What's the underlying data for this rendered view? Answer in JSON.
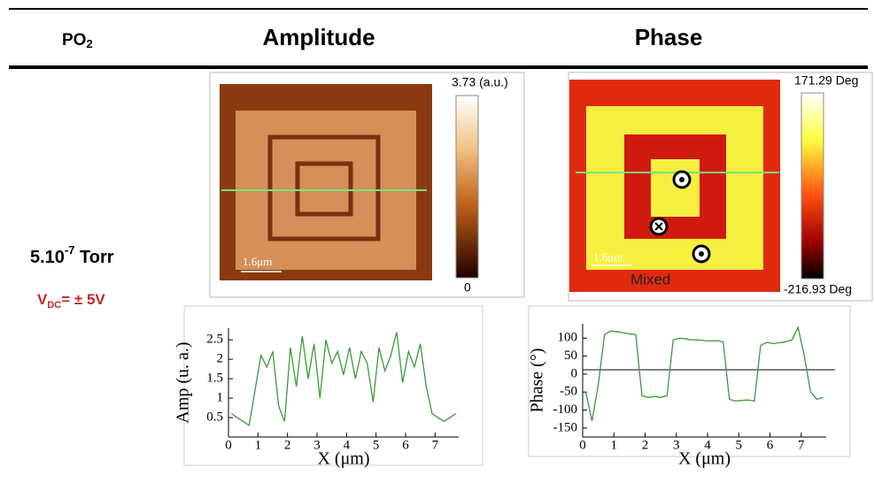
{
  "header": {
    "po": "PO",
    "po_sub": "2",
    "amplitude": "Amplitude",
    "phase": "Phase"
  },
  "condition": {
    "pressure": "5.10",
    "pressure_exp": "-7",
    "pressure_unit": " Torr",
    "voltage": "V",
    "voltage_sub": "DC",
    "voltage_value": "= ± 5V"
  },
  "amplitude_map": {
    "colorbar_max": "3.73 (a.u.)",
    "colorbar_min": "0",
    "scale_bar": "1.6μm"
  },
  "phase_map": {
    "colorbar_max": "171.29 Deg",
    "colorbar_min": "-216.93 Deg",
    "scale_bar": "1.6μm",
    "annotation": "Mixed"
  },
  "amplitude_profile": {
    "type": "line",
    "xlabel": "X (μm)",
    "ylabel": "Amp (u. a.)",
    "color": "#3a9a3a",
    "x": [
      0.1,
      0.3,
      0.5,
      0.7,
      0.9,
      1.1,
      1.3,
      1.5,
      1.7,
      1.9,
      2.1,
      2.3,
      2.5,
      2.7,
      2.9,
      3.1,
      3.3,
      3.5,
      3.7,
      3.9,
      4.1,
      4.3,
      4.5,
      4.7,
      4.9,
      5.1,
      5.3,
      5.5,
      5.7,
      5.9,
      6.1,
      6.3,
      6.5,
      6.7,
      6.9,
      7.1,
      7.3,
      7.5,
      7.7
    ],
    "values": [
      0.6,
      0.5,
      0.4,
      0.3,
      1.2,
      2.1,
      1.8,
      2.2,
      0.8,
      0.4,
      2.3,
      1.3,
      2.6,
      1.5,
      2.4,
      1.0,
      2.5,
      1.9,
      2.2,
      1.6,
      2.3,
      1.5,
      2.2,
      1.9,
      0.9,
      2.3,
      1.7,
      2.1,
      2.7,
      1.4,
      2.2,
      1.8,
      2.4,
      1.3,
      0.6,
      0.5,
      0.4,
      0.5,
      0.6
    ],
    "xlim": [
      0,
      7.8
    ],
    "ylim": [
      0,
      2.8
    ],
    "xticks": [
      0,
      1,
      2,
      3,
      4,
      5,
      6,
      7
    ],
    "yticks": [
      0.5,
      1,
      1.5,
      2,
      2.5
    ]
  },
  "phase_profile": {
    "type": "line",
    "xlabel": "X (μm)",
    "ylabel": "Phase (°)",
    "color": "#3a9a3a",
    "x": [
      0.1,
      0.3,
      0.5,
      0.7,
      0.9,
      1.1,
      1.3,
      1.5,
      1.7,
      1.9,
      2.1,
      2.3,
      2.5,
      2.7,
      2.9,
      3.1,
      3.3,
      3.5,
      3.7,
      3.9,
      4.1,
      4.3,
      4.5,
      4.7,
      4.9,
      5.1,
      5.3,
      5.5,
      5.7,
      5.9,
      6.1,
      6.3,
      6.5,
      6.7,
      6.9,
      7.1,
      7.3,
      7.5,
      7.7
    ],
    "values": [
      -50,
      -130,
      -30,
      110,
      120,
      118,
      115,
      112,
      110,
      -60,
      -65,
      -62,
      -65,
      -60,
      95,
      100,
      98,
      95,
      95,
      93,
      92,
      93,
      90,
      -70,
      -75,
      -73,
      -72,
      -75,
      80,
      88,
      85,
      87,
      90,
      95,
      130,
      50,
      -50,
      -70,
      -65
    ],
    "xlim": [
      0,
      7.8
    ],
    "ylim": [
      -175,
      140
    ],
    "xticks": [
      0,
      1,
      2,
      3,
      4,
      5,
      6,
      7
    ],
    "yticks": [
      100,
      50,
      0,
      -50,
      -100,
      -150
    ],
    "reference_line": 12
  }
}
